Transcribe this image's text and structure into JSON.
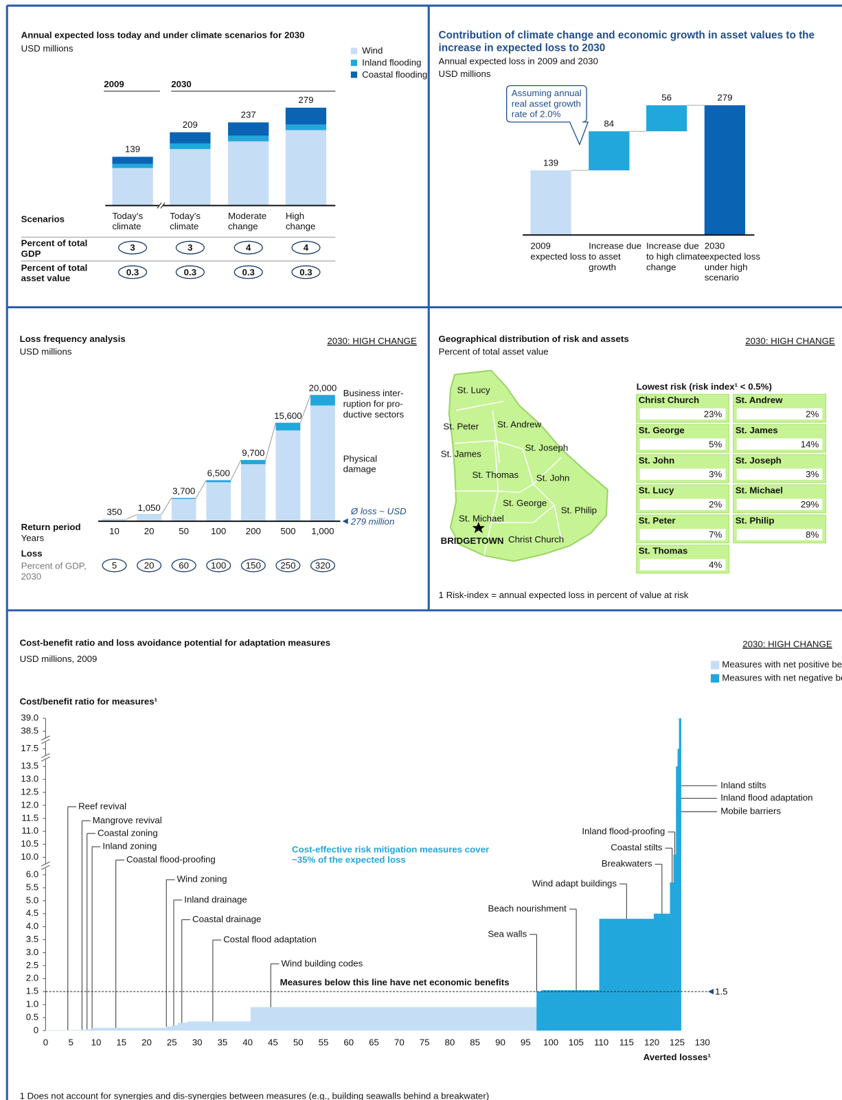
{
  "chart_data": [
    {
      "type": "stacked_bar",
      "title": "Annual expected loss today and under climate scenarios for 2030",
      "subtitle": "USD millions",
      "group_labels": [
        "2009",
        "2030"
      ],
      "categories": [
        "Today’s climate",
        "Today’s climate",
        "Moderate change",
        "High change"
      ],
      "series": [
        {
          "name": "Wind",
          "color": "#c6ddf6",
          "values": [
            107,
            161,
            183,
            215
          ]
        },
        {
          "name": "Inland flooding",
          "color": "#22a7dc",
          "values": [
            12,
            16,
            16,
            16
          ]
        },
        {
          "name": "Coastal flooding",
          "color": "#0b63b3",
          "values": [
            20,
            32,
            38,
            48
          ]
        }
      ],
      "totals": [
        139,
        209,
        237,
        279
      ],
      "row_header": "Scenarios",
      "rows": [
        {
          "label": "Percent of total GDP",
          "values": [
            3,
            3,
            4,
            4
          ]
        },
        {
          "label": "Percent of total asset value",
          "values": [
            0.3,
            0.3,
            0.3,
            0.3
          ]
        }
      ]
    },
    {
      "type": "waterfall",
      "title": "Contribution of climate change and economic growth in asset values to the increase in expected loss to 2030",
      "subtitle": [
        "Annual expected loss in 2009 and 2030",
        "USD millions"
      ],
      "annotation": "Assuming annual real asset growth rate of 2.0%",
      "categories": [
        "2009 expected loss",
        "Increase due to asset growth",
        "Increase due to high climate change",
        "2030 expected loss under high scenario"
      ],
      "values": [
        139,
        84,
        56,
        279
      ],
      "measure": [
        "absolute",
        "relative",
        "relative",
        "total"
      ],
      "colors": [
        "#c6ddf6",
        "#22a7dc",
        "#22a7dc",
        "#0b63b3"
      ]
    },
    {
      "type": "stacked_column",
      "title": "Loss frequency analysis",
      "subtitle": "USD millions",
      "tag": "2030: HIGH CHANGE",
      "categories": [
        "10",
        "20",
        "50",
        "100",
        "200",
        "500",
        "1,000"
      ],
      "series": [
        {
          "name": "Physical damage",
          "color": "#c6ddf6",
          "values": [
            330,
            1000,
            3550,
            6170,
            9030,
            14380,
            18330
          ]
        },
        {
          "name": "Business inter-ruption for pro-ductive sectors",
          "color": "#22a7dc",
          "values": [
            20,
            50,
            150,
            330,
            670,
            1220,
            1670
          ]
        }
      ],
      "totals": [
        350,
        1050,
        3700,
        6500,
        9700,
        15600,
        20000
      ],
      "totals_labels": [
        "350",
        "1,050",
        "3,700",
        "6,500",
        "9,700",
        "15,600",
        "20,000"
      ],
      "x_label": "Return period",
      "x_sublabel": "Years",
      "row": {
        "label": "Loss",
        "sublabel": "Percent of GDP, 2030",
        "values": [
          5,
          20,
          60,
          100,
          150,
          250,
          320
        ]
      },
      "annotation": "Ø loss ~ USD 279 million"
    },
    {
      "type": "table",
      "title": "Geographical distribution of risk and assets",
      "subtitle": "Percent of total asset value",
      "tag": "2030: HIGH CHANGE",
      "heading": "Lowest risk (risk index¹ < 0.5%)",
      "categories": [
        "Christ Church",
        "St. Andrew",
        "St. George",
        "St. James",
        "St. John",
        "St. Joseph",
        "St. Lucy",
        "St. Michael",
        "St. Peter",
        "St. Philip",
        "St. Thomas"
      ],
      "values": [
        23,
        2,
        5,
        14,
        3,
        3,
        2,
        29,
        7,
        8,
        4
      ],
      "value_labels": [
        "23%",
        "2%",
        "5%",
        "14%",
        "3%",
        "3%",
        "2%",
        "29%",
        "7%",
        "8%",
        "4%"
      ],
      "color": "#c6f394",
      "capital": "BRIDGETOWN",
      "footnote": "1 Risk-index = annual expected loss in percent of value at risk"
    },
    {
      "type": "bar",
      "title": "Cost-benefit ratio and loss avoidance potential for adaptation measures",
      "subtitle": "USD millions, 2009",
      "tag": "2030: HIGH CHANGE",
      "y_label": "Cost/benefit ratio for measures¹",
      "x_label": "Averted losses¹",
      "legend": [
        {
          "name": "Measures with net positive benefits",
          "color": "#c6ddf6"
        },
        {
          "name": "Measures with net negative benefits",
          "color": "#22a7dc"
        }
      ],
      "categories": [
        "Reef revival",
        "Mangrove revival",
        "Coastal zoning",
        "Inland zoning",
        "Coastal flood-proofing",
        "Wind zoning",
        "Inland drainage",
        "Coastal drainage",
        "Costal flood adaptation",
        "Wind building codes",
        "Sea walls",
        "Beach nourishment",
        "Wind adapt buildings",
        "Breakwaters",
        "Coastal stilts",
        "Inland flood-proofing",
        "Mobile barriers",
        "Inland flood adaptation",
        "Inland stilts"
      ],
      "bins": [
        0,
        4.4,
        7.2,
        8.2,
        9.2,
        23.9,
        25.0,
        26.2,
        28.1,
        40.6,
        97.2,
        98.2,
        109.6,
        120.4,
        123.6,
        124.3,
        124.8,
        125.1,
        125.4,
        125.8
      ],
      "values": [
        0.01,
        0.02,
        0.03,
        0.05,
        0.1,
        0.15,
        0.2,
        0.3,
        0.35,
        0.9,
        1.5,
        1.55,
        4.3,
        4.5,
        5.7,
        10.1,
        13.6,
        17.5,
        39.0
      ],
      "colors": [
        "#c6ddf6",
        "#c6ddf6",
        "#c6ddf6",
        "#c6ddf6",
        "#c6ddf6",
        "#c6ddf6",
        "#c6ddf6",
        "#c6ddf6",
        "#c6ddf6",
        "#c6ddf6",
        "#22a7dc",
        "#22a7dc",
        "#22a7dc",
        "#22a7dc",
        "#22a7dc",
        "#22a7dc",
        "#22a7dc",
        "#22a7dc",
        "#22a7dc"
      ],
      "xlim": [
        0,
        130
      ],
      "xticks": [
        0,
        5,
        10,
        15,
        20,
        25,
        30,
        35,
        40,
        45,
        50,
        55,
        60,
        65,
        70,
        75,
        80,
        85,
        90,
        95,
        100,
        105,
        110,
        115,
        120,
        125,
        130
      ],
      "ylim": [
        0,
        39
      ],
      "yticks": [
        0,
        0.5,
        {
          "value": 1,
          "label": "1.0"
        },
        1.5,
        {
          "value": 2,
          "label": "2.0"
        },
        2.5,
        {
          "value": 3,
          "label": "3.0"
        },
        3.5,
        {
          "value": 4,
          "label": "4.0"
        },
        4.5,
        {
          "value": 5,
          "label": "5.0"
        },
        5.5,
        {
          "value": 6,
          "label": "6.0"
        },
        {
          "value": 10,
          "label": "10.0"
        },
        10.5,
        {
          "value": 11,
          "label": "11.0"
        },
        11.5,
        {
          "value": 12,
          "label": "12.0"
        },
        12.5,
        {
          "value": 13,
          "label": "13.0"
        },
        13.5,
        17.5,
        38.5,
        {
          "value": 39,
          "label": "39.0"
        }
      ],
      "axis_breaks": [
        [
          6,
          10
        ],
        [
          13.5,
          17.5
        ],
        [
          17.5,
          38.5
        ]
      ],
      "threshold": 1.5,
      "threshold_annotation": "Measures below this line have net economic benefits",
      "annotation": "Cost-effective risk mitigation measures cover ~35% of the expected loss",
      "footnote": "1 Does not account for synergies and dis-synergies between measures (e.g., building seawalls behind a breakwater)"
    }
  ]
}
